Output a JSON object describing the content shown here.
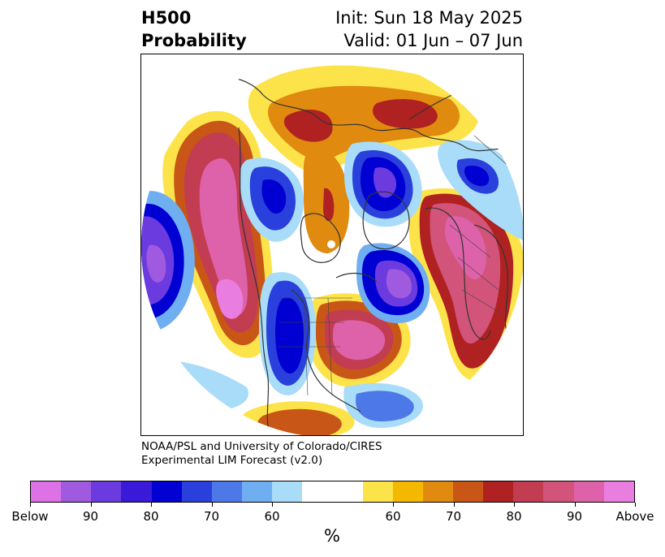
{
  "title": {
    "variable": "H500",
    "subtitle": "Probability",
    "init": "Init: Sun 18 May 2025",
    "valid": "Valid: 01 Jun – 07 Jun"
  },
  "credit": {
    "line1": "NOAA/PSL and University of Colorado/CIRES",
    "line2": "Experimental LIM Forecast (v2.0)"
  },
  "colorbar": {
    "unit": "%",
    "colors": [
      "#dc72e6",
      "#a05ae0",
      "#6c3be0",
      "#3a1ad8",
      "#0000d2",
      "#2a40dc",
      "#4d78e8",
      "#70aef2",
      "#a8dcf8",
      "#ffffff",
      "#ffffff",
      "#fde34a",
      "#f5b800",
      "#e08a10",
      "#c85616",
      "#b02222",
      "#c23c52",
      "#d2547a",
      "#de62aa",
      "#ea7ee0"
    ],
    "ticks": [
      "Below",
      "90",
      "80",
      "70",
      "60",
      "60",
      "70",
      "80",
      "90",
      "Above"
    ]
  },
  "map": {
    "projection": "north-polar-stereographic",
    "legend_colors": {
      "below_strong": "#dc72e6",
      "below": "#0000d2",
      "above": "#b02222",
      "above_strong": "#ea7ee0",
      "coast": "#333333"
    }
  }
}
